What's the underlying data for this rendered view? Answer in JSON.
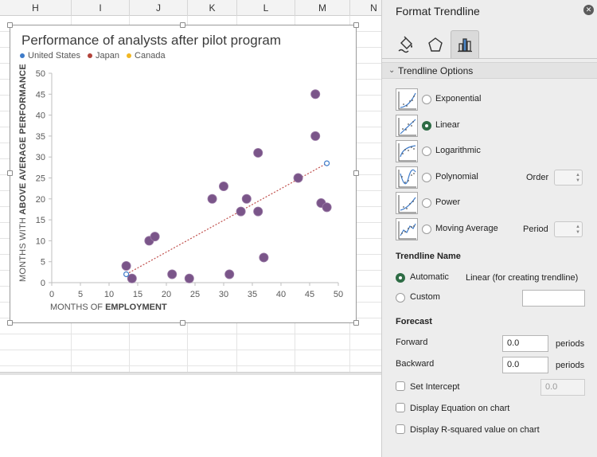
{
  "sheet": {
    "columns": [
      "H",
      "I",
      "J",
      "K",
      "L",
      "M",
      "N"
    ]
  },
  "chart": {
    "title": "Performance of analysts after pilot program",
    "ylabel_prefix": "MONTHS WITH ",
    "ylabel_bold": "ABOVE AVERAGE PERFORMANCE",
    "xlabel_prefix": "MONTHS OF ",
    "xlabel_bold": "EMPLOYMENT"
  },
  "chart_data": {
    "type": "scatter",
    "title": "Performance of analysts after pilot program",
    "xlabel": "MONTHS OF EMPLOYMENT",
    "ylabel": "MONTHS WITH ABOVE AVERAGE PERFORMANCE",
    "xlim": [
      0,
      50
    ],
    "ylim": [
      0,
      50
    ],
    "xticks": [
      0,
      5,
      10,
      15,
      20,
      25,
      30,
      35,
      40,
      45,
      50
    ],
    "yticks": [
      0,
      5,
      10,
      15,
      20,
      25,
      30,
      35,
      40,
      45,
      50
    ],
    "legend": [
      {
        "name": "United States",
        "color": "#3e7bc9"
      },
      {
        "name": "Japan",
        "color": "#b2433a"
      },
      {
        "name": "Canada",
        "color": "#f1b723"
      }
    ],
    "legend_position": "top-left",
    "marker_color": "#7a5589",
    "points": [
      {
        "x": 13,
        "y": 4
      },
      {
        "x": 14,
        "y": 1
      },
      {
        "x": 17,
        "y": 10
      },
      {
        "x": 18,
        "y": 11
      },
      {
        "x": 21,
        "y": 2
      },
      {
        "x": 24,
        "y": 1
      },
      {
        "x": 28,
        "y": 20
      },
      {
        "x": 30,
        "y": 23
      },
      {
        "x": 31,
        "y": 2
      },
      {
        "x": 33,
        "y": 17
      },
      {
        "x": 34,
        "y": 20
      },
      {
        "x": 36,
        "y": 31
      },
      {
        "x": 36,
        "y": 17
      },
      {
        "x": 37,
        "y": 6
      },
      {
        "x": 43,
        "y": 25
      },
      {
        "x": 46,
        "y": 45
      },
      {
        "x": 46,
        "y": 35
      },
      {
        "x": 47,
        "y": 19
      },
      {
        "x": 48,
        "y": 18
      }
    ],
    "trendline": {
      "type": "linear",
      "x0": 13,
      "y0": 2,
      "x1": 48,
      "y1": 28.5,
      "color": "#c0504d"
    }
  },
  "panel": {
    "title": "Format Trendline",
    "tabs": [
      "fill-line",
      "effects",
      "options"
    ],
    "section_title": "Trendline Options",
    "types": [
      {
        "label": "Exponential",
        "icon": "exponential-icon",
        "selected": false
      },
      {
        "label": "Linear",
        "icon": "linear-icon",
        "selected": true
      },
      {
        "label": "Logarithmic",
        "icon": "logarithmic-icon",
        "selected": false
      },
      {
        "label": "Polynomial",
        "icon": "polynomial-icon",
        "selected": false
      },
      {
        "label": "Power",
        "icon": "power-icon",
        "selected": false
      },
      {
        "label": "Moving Average",
        "icon": "moving-average-icon",
        "selected": false
      }
    ],
    "order_label": "Order",
    "period_label": "Period",
    "name_section": "Trendline Name",
    "automatic_label": "Automatic",
    "automatic_value": "Linear (for creating trendline)",
    "custom_label": "Custom",
    "forecast_section": "Forecast",
    "forward_label": "Forward",
    "forward_value": "0.0",
    "backward_label": "Backward",
    "backward_value": "0.0",
    "periods_label": "periods",
    "set_intercept_label": "Set Intercept",
    "intercept_value": "0.0",
    "display_equation_label": "Display Equation on chart",
    "display_rsquared_label": "Display R-squared value on chart"
  }
}
